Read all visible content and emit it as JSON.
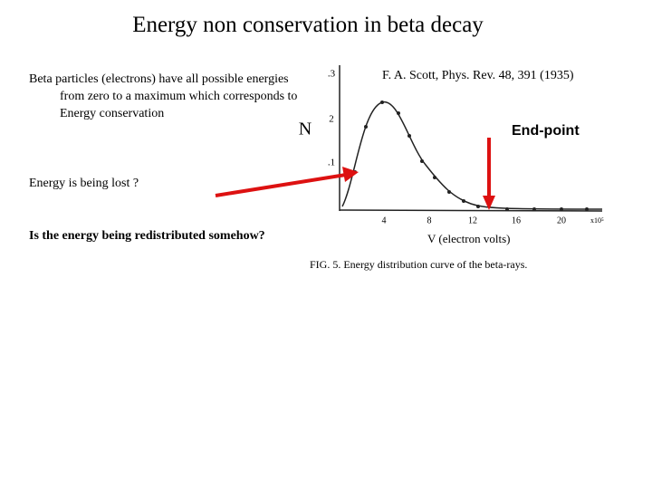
{
  "title": "Energy non conservation in beta decay",
  "body": {
    "paragraph1": "Beta particles (electrons) have all possible energies from zero to a maximum which corresponds to Energy conservation",
    "paragraph2": "Energy is being lost ?",
    "paragraph3": "Is the energy being redistributed somehow?"
  },
  "figure": {
    "citation": "F. A. Scott, Phys. Rev. 48, 391 (1935)",
    "y_axis_label": "N",
    "y_ticks": [
      ".3",
      "2",
      ".1"
    ],
    "x_ticks": [
      "4",
      "8",
      "12",
      "16",
      "20"
    ],
    "x_scale": "x10⁵",
    "x_axis_label": "V (electron volts)",
    "caption": "FIG. 5. Energy distribution curve of the beta-rays.",
    "annotation": "End-point"
  }
}
